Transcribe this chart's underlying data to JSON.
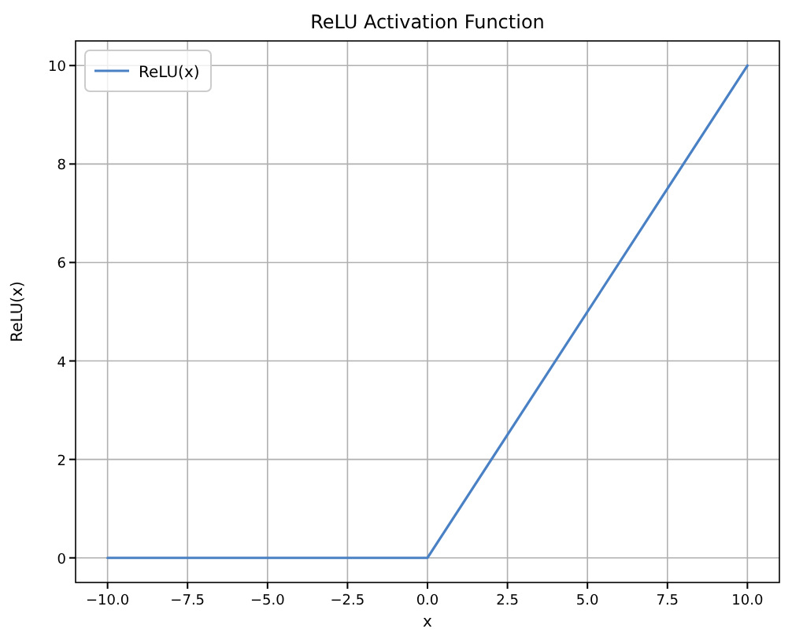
{
  "chart_data": {
    "type": "line",
    "title": "ReLU Activation Function",
    "xlabel": "x",
    "ylabel": "ReLU(x)",
    "series": [
      {
        "name": "ReLU(x)",
        "color": "#4a80c4",
        "x": [
          -10,
          0,
          10
        ],
        "values": [
          0,
          0,
          10
        ]
      }
    ],
    "xlim": [
      -11,
      11
    ],
    "ylim": [
      -0.5,
      10.5
    ],
    "xticks": [
      {
        "value": -10,
        "label": "−10.0"
      },
      {
        "value": -7.5,
        "label": "−7.5"
      },
      {
        "value": -5,
        "label": "−5.0"
      },
      {
        "value": -2.5,
        "label": "−2.5"
      },
      {
        "value": 0,
        "label": "0.0"
      },
      {
        "value": 2.5,
        "label": "2.5"
      },
      {
        "value": 5,
        "label": "5.0"
      },
      {
        "value": 7.5,
        "label": "7.5"
      },
      {
        "value": 10,
        "label": "10.0"
      }
    ],
    "yticks": [
      0,
      2,
      4,
      6,
      8,
      10
    ],
    "grid": true,
    "legend": "top left",
    "line_style": "solid",
    "marker": "none"
  }
}
